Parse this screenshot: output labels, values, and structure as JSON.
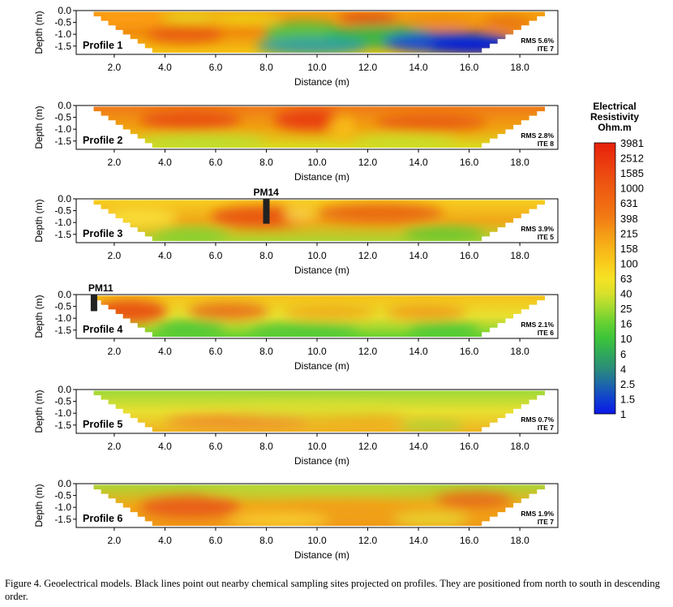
{
  "chart_data": [
    {
      "type": "heatmap",
      "panel_label": "Profile 1",
      "rms": "RMS 5.6%",
      "ite": "ITE 7",
      "marker": null,
      "ylabel": "Depth (m)",
      "xlabel": "Distance (m)",
      "xlim": [
        0.5,
        19.5
      ],
      "ylim": [
        -1.85,
        0.0
      ],
      "y_ticks": [
        "0.0",
        "-0.5",
        "-1.0",
        "-1.5"
      ],
      "y_tick_values": [
        0.0,
        -0.5,
        -1.0,
        -1.5
      ],
      "x_ticks": [
        "2.0",
        "4.0",
        "6.0",
        "8.0",
        "10.0",
        "12.0",
        "14.0",
        "16.0",
        "18.0"
      ],
      "x_tick_values": [
        2,
        4,
        6,
        8,
        10,
        12,
        14,
        16,
        18
      ],
      "colors": {
        "shallow": "#f5a20f",
        "middle": "#f08a0c",
        "deep": "#f5c812"
      },
      "blobs": [
        {
          "x": 2.5,
          "d": 0.35,
          "rx": 1.6,
          "ry": 0.3,
          "color": "#ff9c14"
        },
        {
          "x": 5.0,
          "d": 0.3,
          "rx": 1.2,
          "ry": 0.22,
          "color": "#e8e020"
        },
        {
          "x": 7.2,
          "d": 0.35,
          "rx": 1.4,
          "ry": 0.25,
          "color": "#f0d818"
        },
        {
          "x": 4.8,
          "d": 1.0,
          "rx": 1.5,
          "ry": 0.35,
          "color": "#e85810"
        },
        {
          "x": 9.5,
          "d": 0.9,
          "rx": 1.6,
          "ry": 0.45,
          "color": "#50c840"
        },
        {
          "x": 12.5,
          "d": 1.1,
          "rx": 2.2,
          "ry": 0.5,
          "color": "#2cb848"
        },
        {
          "x": 9.8,
          "d": 1.5,
          "rx": 2.2,
          "ry": 0.4,
          "color": "#28a0a8"
        },
        {
          "x": 15.2,
          "d": 1.35,
          "rx": 2.6,
          "ry": 0.45,
          "color": "#1040e0"
        },
        {
          "x": 16.2,
          "d": 1.5,
          "rx": 1.8,
          "ry": 0.35,
          "color": "#0010d8"
        },
        {
          "x": 12.0,
          "d": 0.35,
          "rx": 1.2,
          "ry": 0.22,
          "color": "#e03010"
        },
        {
          "x": 14.8,
          "d": 0.45,
          "rx": 1.2,
          "ry": 0.2,
          "color": "#f08a10"
        },
        {
          "x": 17.5,
          "d": 0.5,
          "rx": 0.9,
          "ry": 0.25,
          "color": "#e87010"
        }
      ]
    },
    {
      "type": "heatmap",
      "panel_label": "Profile 2",
      "rms": "RMS 2.8%",
      "ite": "ITE 8",
      "marker": null,
      "ylabel": "Depth (m)",
      "xlabel": "Distance (m)",
      "xlim": [
        0.5,
        19.5
      ],
      "ylim": [
        -1.85,
        0.0
      ],
      "y_ticks": [
        "0.0",
        "-0.5",
        "-1.0",
        "-1.5"
      ],
      "y_tick_values": [
        0.0,
        -0.5,
        -1.0,
        -1.5
      ],
      "x_ticks": [
        "2.0",
        "4.0",
        "6.0",
        "8.0",
        "10.0",
        "12.0",
        "14.0",
        "16.0",
        "18.0"
      ],
      "x_tick_values": [
        2,
        4,
        6,
        8,
        10,
        12,
        14,
        16,
        18
      ],
      "colors": {
        "shallow": "#f07818",
        "middle": "#f0a010",
        "deep": "#d8e020"
      },
      "blobs": [
        {
          "x": 5.0,
          "d": 0.6,
          "rx": 2.0,
          "ry": 0.4,
          "color": "#e84c10"
        },
        {
          "x": 9.8,
          "d": 0.6,
          "rx": 1.5,
          "ry": 0.45,
          "color": "#e83810"
        },
        {
          "x": 14.5,
          "d": 0.7,
          "rx": 2.2,
          "ry": 0.35,
          "color": "#e85a10"
        },
        {
          "x": 11.0,
          "d": 0.9,
          "rx": 0.5,
          "ry": 0.5,
          "color": "#f8c018"
        },
        {
          "x": 5.5,
          "d": 1.55,
          "rx": 2.5,
          "ry": 0.3,
          "color": "#b8e030"
        },
        {
          "x": 13.5,
          "d": 1.55,
          "rx": 2.0,
          "ry": 0.3,
          "color": "#c8e028"
        }
      ]
    },
    {
      "type": "heatmap",
      "panel_label": "Profile 3",
      "rms": "RMS 3.9%",
      "ite": "ITE 5",
      "marker": {
        "label": "PM14",
        "x": 8.0
      },
      "ylabel": "Depth (m)",
      "xlabel": "Distance (m)",
      "xlim": [
        0.5,
        19.5
      ],
      "ylim": [
        -1.85,
        0.0
      ],
      "y_ticks": [
        "0.0",
        "-0.5",
        "-1.0",
        "-1.5"
      ],
      "y_tick_values": [
        0.0,
        -0.5,
        -1.0,
        -1.5
      ],
      "x_ticks": [
        "2.0",
        "4.0",
        "6.0",
        "8.0",
        "10.0",
        "12.0",
        "14.0",
        "16.0",
        "18.0"
      ],
      "x_tick_values": [
        2,
        4,
        6,
        8,
        10,
        12,
        14,
        16,
        18
      ],
      "colors": {
        "shallow": "#f8d020",
        "middle": "#f0a818",
        "deep": "#a8d830"
      },
      "blobs": [
        {
          "x": 7.8,
          "d": 0.75,
          "rx": 2.0,
          "ry": 0.45,
          "color": "#e85010"
        },
        {
          "x": 12.5,
          "d": 0.6,
          "rx": 2.5,
          "ry": 0.4,
          "color": "#e86010"
        },
        {
          "x": 3.0,
          "d": 0.8,
          "rx": 1.5,
          "ry": 0.45,
          "color": "#f8e038"
        },
        {
          "x": 9.3,
          "d": 0.65,
          "rx": 0.6,
          "ry": 0.3,
          "color": "#f8d848"
        },
        {
          "x": 5.0,
          "d": 1.55,
          "rx": 1.5,
          "ry": 0.3,
          "color": "#80d030"
        },
        {
          "x": 15.0,
          "d": 1.5,
          "rx": 1.6,
          "ry": 0.3,
          "color": "#60c830"
        }
      ]
    },
    {
      "type": "heatmap",
      "panel_label": "Profile 4",
      "rms": "RMS 2.1%",
      "ite": "ITE 6",
      "marker": {
        "label": "PM11",
        "x": 1.2
      },
      "ylabel": "Depth (m)",
      "xlabel": "Distance (m)",
      "xlim": [
        0.5,
        19.5
      ],
      "ylim": [
        -1.85,
        0.0
      ],
      "y_ticks": [
        "0.0",
        "-0.5",
        "-1.0",
        "-1.5"
      ],
      "y_tick_values": [
        0.0,
        -0.5,
        -1.0,
        -1.5
      ],
      "x_ticks": [
        "2.0",
        "4.0",
        "6.0",
        "8.0",
        "10.0",
        "12.0",
        "14.0",
        "16.0",
        "18.0"
      ],
      "x_tick_values": [
        2,
        4,
        6,
        8,
        10,
        12,
        14,
        16,
        18
      ],
      "colors": {
        "shallow": "#f8c018",
        "middle": "#e8e030",
        "deep": "#60d030"
      },
      "blobs": [
        {
          "x": 2.6,
          "d": 0.7,
          "rx": 1.5,
          "ry": 0.5,
          "color": "#e84810"
        },
        {
          "x": 6.5,
          "d": 0.7,
          "rx": 1.6,
          "ry": 0.35,
          "color": "#e86818"
        },
        {
          "x": 10.5,
          "d": 0.75,
          "rx": 1.8,
          "ry": 0.3,
          "color": "#f0a818"
        },
        {
          "x": 14.3,
          "d": 0.75,
          "rx": 1.6,
          "ry": 0.3,
          "color": "#f09818"
        },
        {
          "x": 5.0,
          "d": 1.45,
          "rx": 1.4,
          "ry": 0.35,
          "color": "#48c838"
        },
        {
          "x": 9.5,
          "d": 1.55,
          "rx": 2.2,
          "ry": 0.3,
          "color": "#48c838"
        },
        {
          "x": 15.0,
          "d": 1.5,
          "rx": 1.4,
          "ry": 0.3,
          "color": "#40c838"
        }
      ]
    },
    {
      "type": "heatmap",
      "panel_label": "Profile 5",
      "rms": "RMS 0.7%",
      "ite": "ITE 7",
      "marker": null,
      "ylabel": "Depth (m)",
      "xlabel": "Distance (m)",
      "xlim": [
        0.5,
        19.5
      ],
      "ylim": [
        -1.85,
        0.0
      ],
      "y_ticks": [
        "0.0",
        "-0.5",
        "-1.0",
        "-1.5"
      ],
      "y_tick_values": [
        0.0,
        -0.5,
        -1.0,
        -1.5
      ],
      "x_ticks": [
        "2.0",
        "4.0",
        "6.0",
        "8.0",
        "10.0",
        "12.0",
        "14.0",
        "16.0",
        "18.0"
      ],
      "x_tick_values": [
        2,
        4,
        6,
        8,
        10,
        12,
        14,
        16,
        18
      ],
      "colors": {
        "shallow": "#9cd838",
        "middle": "#e8e030",
        "deep": "#f0b020"
      },
      "blobs": [
        {
          "x": 7.0,
          "d": 1.35,
          "rx": 3.0,
          "ry": 0.3,
          "color": "#f08828"
        },
        {
          "x": 11.5,
          "d": 1.3,
          "rx": 2.0,
          "ry": 0.25,
          "color": "#f0a018"
        },
        {
          "x": 14.5,
          "d": 1.55,
          "rx": 1.3,
          "ry": 0.2,
          "color": "#a0d838"
        },
        {
          "x": 10.0,
          "d": 0.9,
          "rx": 3.5,
          "ry": 0.25,
          "color": "#d8e030"
        }
      ]
    },
    {
      "type": "heatmap",
      "panel_label": "Profile 6",
      "rms": "RMS 1.9%",
      "ite": "ITE 7",
      "marker": null,
      "ylabel": "Depth (m)",
      "xlabel": "Distance (m)",
      "xlim": [
        0.5,
        19.5
      ],
      "ylim": [
        -1.85,
        0.0
      ],
      "y_ticks": [
        "0.0",
        "-0.5",
        "-1.0",
        "-1.5"
      ],
      "y_tick_values": [
        0.0,
        -0.5,
        -1.0,
        -1.5
      ],
      "x_ticks": [
        "2.0",
        "4.0",
        "6.0",
        "8.0",
        "10.0",
        "12.0",
        "14.0",
        "16.0",
        "18.0"
      ],
      "x_tick_values": [
        2,
        4,
        6,
        8,
        10,
        12,
        14,
        16,
        18
      ],
      "colors": {
        "shallow": "#a8d838",
        "middle": "#f0a818",
        "deep": "#f09818"
      },
      "blobs": [
        {
          "x": 5.0,
          "d": 1.0,
          "rx": 2.0,
          "ry": 0.45,
          "color": "#e85818"
        },
        {
          "x": 16.2,
          "d": 0.7,
          "rx": 1.5,
          "ry": 0.35,
          "color": "#e86818"
        },
        {
          "x": 11.0,
          "d": 1.1,
          "rx": 2.5,
          "ry": 0.35,
          "color": "#f0a018"
        },
        {
          "x": 8.5,
          "d": 1.55,
          "rx": 2.0,
          "ry": 0.3,
          "color": "#f8d030"
        },
        {
          "x": 14.5,
          "d": 1.5,
          "rx": 1.5,
          "ry": 0.3,
          "color": "#e8d830"
        },
        {
          "x": 10.0,
          "d": 0.25,
          "rx": 4.5,
          "ry": 0.15,
          "color": "#c0e038"
        }
      ]
    },
    {
      "type": "colorbar",
      "title": [
        "Electrical",
        "Resistivity",
        "Ohm.m"
      ],
      "levels": [
        {
          "label": "3981",
          "color": "#e8200c"
        },
        {
          "label": "2512",
          "color": "#ea340e"
        },
        {
          "label": "1585",
          "color": "#ec4810"
        },
        {
          "label": "1000",
          "color": "#ee5a12"
        },
        {
          "label": "631",
          "color": "#f06a12"
        },
        {
          "label": "398",
          "color": "#f27c14"
        },
        {
          "label": "215",
          "color": "#f59a16"
        },
        {
          "label": "158",
          "color": "#f7b418"
        },
        {
          "label": "100",
          "color": "#f9cc1c"
        },
        {
          "label": "63",
          "color": "#f6e224"
        },
        {
          "label": "40",
          "color": "#d8e02c"
        },
        {
          "label": "25",
          "color": "#a0da30"
        },
        {
          "label": "16",
          "color": "#64d032"
        },
        {
          "label": "10",
          "color": "#3cc43a"
        },
        {
          "label": "6",
          "color": "#30a85a"
        },
        {
          "label": "4",
          "color": "#2a8c7a"
        },
        {
          "label": "2.5",
          "color": "#1e68a8"
        },
        {
          "label": "1.5",
          "color": "#1040d0"
        },
        {
          "label": "1",
          "color": "#0a18e8"
        }
      ]
    }
  ],
  "caption": "Figure 4. Geoelectrical models. Black lines point out nearby chemical sampling sites projected on profiles. They are positioned from north to south in descending order."
}
